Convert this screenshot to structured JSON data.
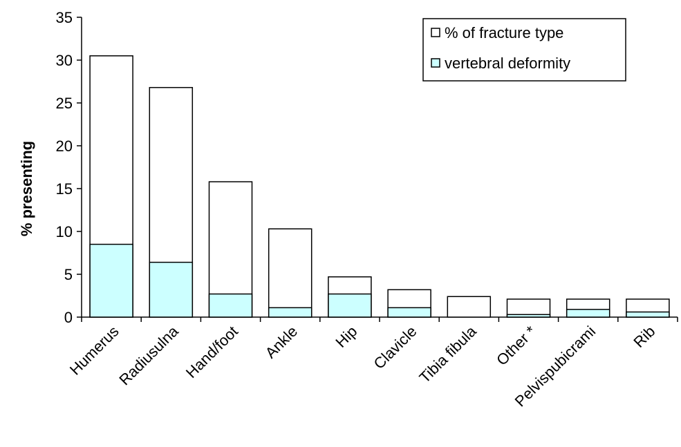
{
  "chart_data": {
    "type": "bar",
    "categories": [
      "Humerus",
      "Radiusulna",
      "Hand/foot",
      "Ankle",
      "Hip",
      "Clavicle",
      "Tibia fibula",
      "Other *",
      "Pelvispubicrami",
      "Rib"
    ],
    "series": [
      {
        "name": "% of fracture type",
        "values": [
          30.5,
          26.8,
          15.8,
          10.3,
          4.7,
          3.2,
          2.4,
          2.1,
          2.1,
          2.1
        ],
        "color": "#ffffff"
      },
      {
        "name": "vertebral deformity",
        "values": [
          8.5,
          6.4,
          2.7,
          1.1,
          2.7,
          1.1,
          0.0,
          0.3,
          0.9,
          0.6
        ],
        "color": "#ccffff"
      }
    ],
    "overlay": true,
    "xlabel": "",
    "ylabel": "% presenting",
    "ylim": [
      0,
      35
    ],
    "yticks": [
      0,
      5,
      10,
      15,
      20,
      25,
      30,
      35
    ],
    "ytick_labels": [
      "0",
      "5",
      "10",
      "15",
      "20",
      "25",
      "30",
      "35"
    ],
    "grid": false,
    "legend_position": "top-right"
  }
}
